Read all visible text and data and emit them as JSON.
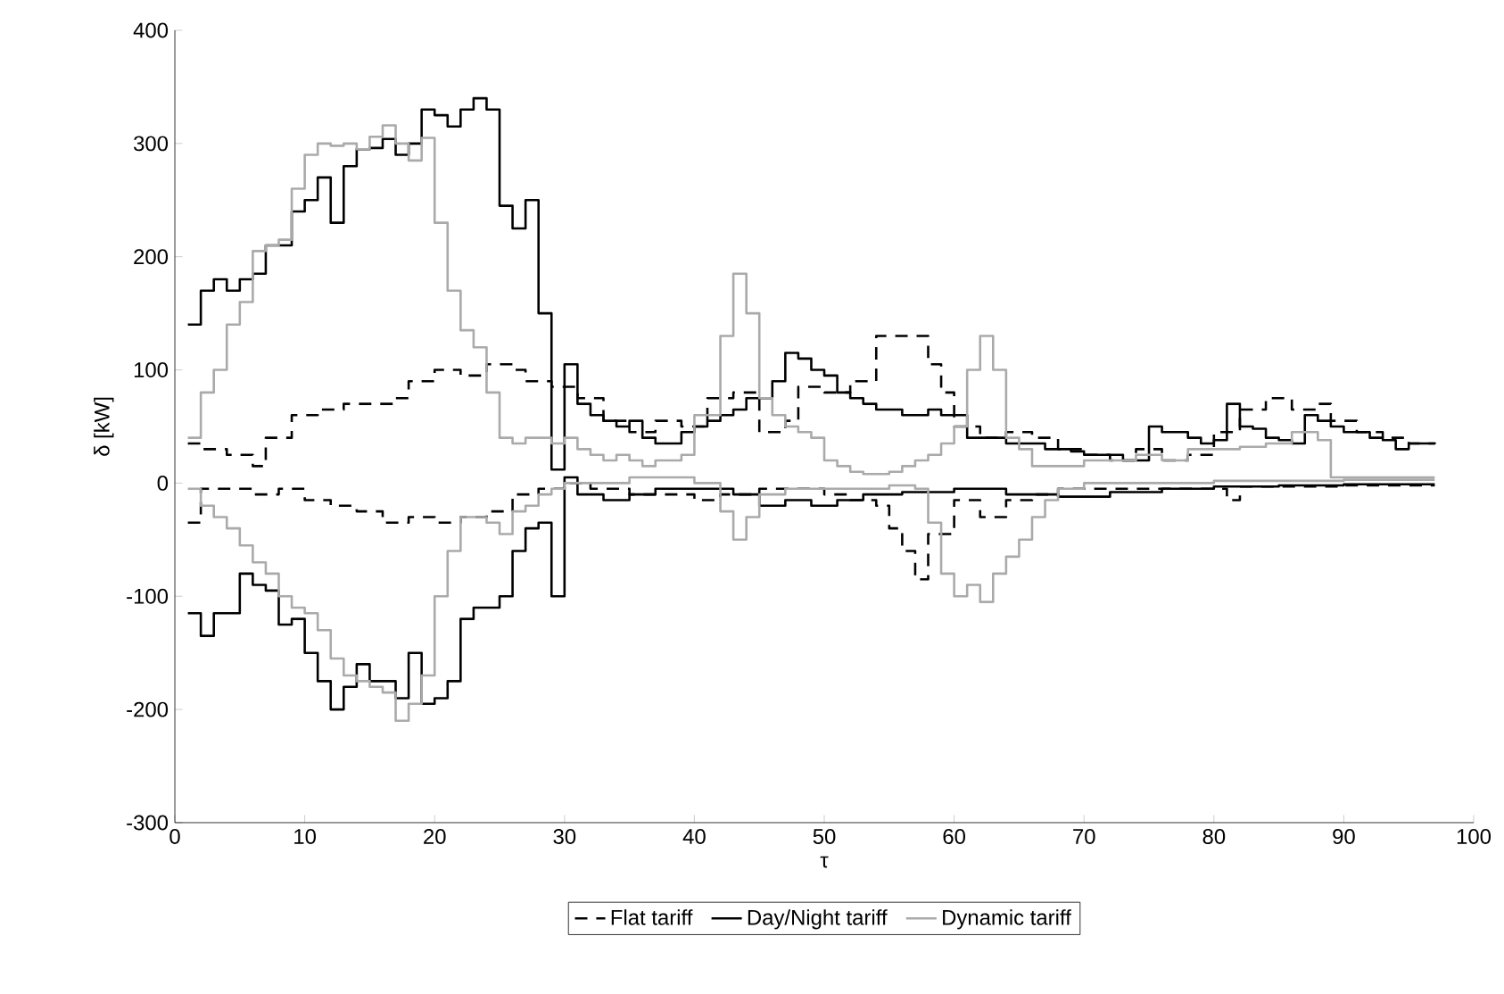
{
  "chart_data": {
    "type": "step",
    "xlabel": "τ",
    "ylabel": "δ [kW]",
    "xlim": [
      0,
      100
    ],
    "ylim": [
      -300,
      400
    ],
    "xticks": [
      0,
      10,
      20,
      30,
      40,
      50,
      60,
      70,
      80,
      90,
      100
    ],
    "yticks": [
      -300,
      -200,
      -100,
      0,
      100,
      200,
      300,
      400
    ],
    "legend": "bottom",
    "grid": false,
    "marker": "none",
    "series": [
      {
        "name": "Flat tariff",
        "color": "#000000",
        "line_style": "dashed",
        "x": [
          1,
          2,
          4,
          6,
          7,
          9,
          11,
          13,
          17,
          18,
          20,
          22,
          24,
          26,
          27,
          29,
          31,
          33,
          35,
          37,
          39,
          41,
          43,
          45,
          47,
          48,
          50,
          52,
          54,
          56,
          58,
          59,
          60,
          62,
          64,
          66,
          68,
          70,
          72,
          74,
          76,
          78,
          80,
          82,
          84,
          86,
          88,
          89,
          91,
          93,
          95,
          97
        ],
        "values": [
          35,
          30,
          25,
          15,
          40,
          60,
          65,
          70,
          75,
          90,
          100,
          95,
          105,
          100,
          90,
          85,
          75,
          55,
          45,
          55,
          50,
          75,
          80,
          45,
          55,
          85,
          80,
          90,
          130,
          130,
          105,
          80,
          50,
          40,
          45,
          40,
          30,
          25,
          20,
          30,
          20,
          25,
          45,
          65,
          75,
          65,
          70,
          55,
          45,
          40,
          35,
          35
        ]
      },
      {
        "color": "#000000",
        "line_style": "dashed",
        "x": [
          1,
          2,
          4,
          6,
          8,
          10,
          12,
          14,
          16,
          18,
          20,
          22,
          24,
          26,
          28,
          30,
          32,
          35,
          38,
          40,
          42,
          45,
          48,
          50,
          52,
          54,
          55,
          56,
          57,
          58,
          60,
          62,
          64,
          66,
          68,
          70,
          75,
          80,
          81,
          82,
          90,
          97
        ],
        "values": [
          -35,
          -5,
          -5,
          -10,
          -5,
          -15,
          -20,
          -25,
          -35,
          -30,
          -35,
          -30,
          -25,
          -10,
          -5,
          0,
          -5,
          -10,
          -10,
          -15,
          -10,
          -5,
          -5,
          -10,
          -15,
          -20,
          -40,
          -60,
          -85,
          -45,
          -15,
          -30,
          -15,
          -10,
          -5,
          -5,
          -5,
          -5,
          -15,
          -3,
          -2,
          -2
        ]
      },
      {
        "name": "Day/Night tariff",
        "color": "#000000",
        "line_style": "solid",
        "x": [
          1,
          2,
          3,
          4,
          5,
          6,
          7,
          8,
          9,
          10,
          11,
          12,
          13,
          14,
          15,
          16,
          17,
          18,
          19,
          20,
          21,
          22,
          23,
          24,
          25,
          26,
          27,
          28,
          29,
          30,
          31,
          32,
          33,
          34,
          35,
          36,
          37,
          38,
          39,
          40,
          41,
          42,
          43,
          44,
          45,
          46,
          47,
          48,
          49,
          50,
          51,
          52,
          53,
          54,
          55,
          56,
          57,
          58,
          59,
          60,
          61,
          62,
          63,
          64,
          65,
          66,
          67,
          68,
          69,
          70,
          71,
          72,
          73,
          74,
          75,
          76,
          77,
          78,
          79,
          80,
          81,
          82,
          83,
          84,
          85,
          86,
          87,
          88,
          89,
          90,
          91,
          92,
          93,
          94,
          95,
          96,
          97
        ],
        "values": [
          140,
          170,
          180,
          170,
          180,
          185,
          210,
          210,
          240,
          250,
          270,
          230,
          280,
          295,
          296,
          304,
          290,
          300,
          330,
          325,
          315,
          330,
          340,
          330,
          245,
          225,
          250,
          150,
          12,
          105,
          70,
          60,
          55,
          50,
          55,
          40,
          35,
          35,
          45,
          50,
          55,
          60,
          65,
          75,
          75,
          90,
          115,
          110,
          100,
          95,
          80,
          75,
          70,
          65,
          65,
          60,
          60,
          65,
          60,
          60,
          40,
          40,
          40,
          35,
          35,
          35,
          30,
          30,
          28,
          25,
          25,
          25,
          20,
          20,
          50,
          45,
          45,
          40,
          35,
          38,
          70,
          50,
          48,
          40,
          38,
          35,
          60,
          55,
          50,
          45,
          45,
          40,
          38,
          30,
          35,
          35,
          36
        ]
      },
      {
        "color": "#000000",
        "line_style": "solid",
        "x": [
          1,
          2,
          3,
          4,
          5,
          6,
          7,
          8,
          9,
          10,
          11,
          12,
          13,
          14,
          15,
          16,
          17,
          18,
          19,
          20,
          21,
          22,
          23,
          24,
          25,
          26,
          27,
          28,
          29,
          30,
          31,
          33,
          35,
          37,
          40,
          43,
          45,
          47,
          49,
          51,
          53,
          56,
          60,
          64,
          68,
          72,
          76,
          80,
          85,
          90,
          97
        ],
        "values": [
          -115,
          -135,
          -115,
          -115,
          -80,
          -90,
          -95,
          -125,
          -120,
          -150,
          -175,
          -200,
          -180,
          -160,
          -175,
          -175,
          -190,
          -150,
          -195,
          -190,
          -175,
          -120,
          -110,
          -110,
          -100,
          -60,
          -40,
          -35,
          -100,
          5,
          -10,
          -15,
          -10,
          -5,
          -5,
          -10,
          -20,
          -15,
          -20,
          -15,
          -10,
          -8,
          -5,
          -10,
          -12,
          -8,
          -5,
          -3,
          -2,
          -1,
          -1
        ]
      },
      {
        "name": "Dynamic tariff",
        "color": "#aaaaaa",
        "line_style": "solid",
        "x": [
          1,
          2,
          3,
          4,
          5,
          6,
          7,
          8,
          9,
          10,
          11,
          12,
          13,
          14,
          15,
          16,
          17,
          18,
          19,
          20,
          21,
          22,
          23,
          24,
          25,
          26,
          27,
          28,
          29,
          30,
          31,
          32,
          33,
          34,
          35,
          36,
          37,
          38,
          39,
          40,
          41,
          42,
          43,
          44,
          45,
          46,
          47,
          48,
          49,
          50,
          51,
          52,
          53,
          54,
          55,
          56,
          57,
          58,
          59,
          60,
          61,
          62,
          63,
          64,
          65,
          66,
          67,
          68,
          69,
          70,
          72,
          74,
          76,
          78,
          80,
          82,
          84,
          86,
          88,
          89,
          97
        ],
        "values": [
          40,
          80,
          100,
          140,
          160,
          205,
          210,
          215,
          260,
          290,
          300,
          298,
          300,
          295,
          306,
          316,
          300,
          285,
          305,
          230,
          170,
          135,
          120,
          80,
          40,
          35,
          40,
          40,
          35,
          40,
          30,
          25,
          20,
          25,
          20,
          15,
          20,
          20,
          25,
          60,
          60,
          130,
          185,
          150,
          75,
          60,
          50,
          45,
          40,
          20,
          15,
          10,
          8,
          8,
          10,
          15,
          20,
          25,
          35,
          50,
          100,
          130,
          100,
          40,
          30,
          15,
          15,
          15,
          15,
          20,
          20,
          25,
          20,
          30,
          30,
          32,
          35,
          45,
          38,
          5,
          5
        ]
      },
      {
        "color": "#aaaaaa",
        "line_style": "solid",
        "x": [
          1,
          2,
          3,
          4,
          5,
          6,
          7,
          8,
          9,
          10,
          11,
          12,
          13,
          14,
          15,
          16,
          17,
          18,
          19,
          20,
          21,
          22,
          23,
          24,
          25,
          26,
          27,
          28,
          29,
          30,
          33,
          35,
          38,
          40,
          42,
          43,
          44,
          45,
          47,
          50,
          55,
          57,
          58,
          59,
          60,
          61,
          62,
          63,
          64,
          65,
          66,
          67,
          68,
          70,
          75,
          80,
          90,
          97
        ],
        "values": [
          -5,
          -20,
          -30,
          -40,
          -55,
          -70,
          -80,
          -100,
          -110,
          -115,
          -130,
          -155,
          -170,
          -175,
          -180,
          -185,
          -210,
          -195,
          -170,
          -100,
          -60,
          -30,
          -30,
          -35,
          -45,
          -25,
          -20,
          -10,
          -5,
          0,
          0,
          5,
          5,
          0,
          -25,
          -50,
          -30,
          -10,
          -5,
          -5,
          -2,
          -5,
          -35,
          -80,
          -100,
          -90,
          -105,
          -80,
          -65,
          -50,
          -30,
          -15,
          -5,
          0,
          0,
          2,
          3,
          3
        ]
      }
    ]
  }
}
